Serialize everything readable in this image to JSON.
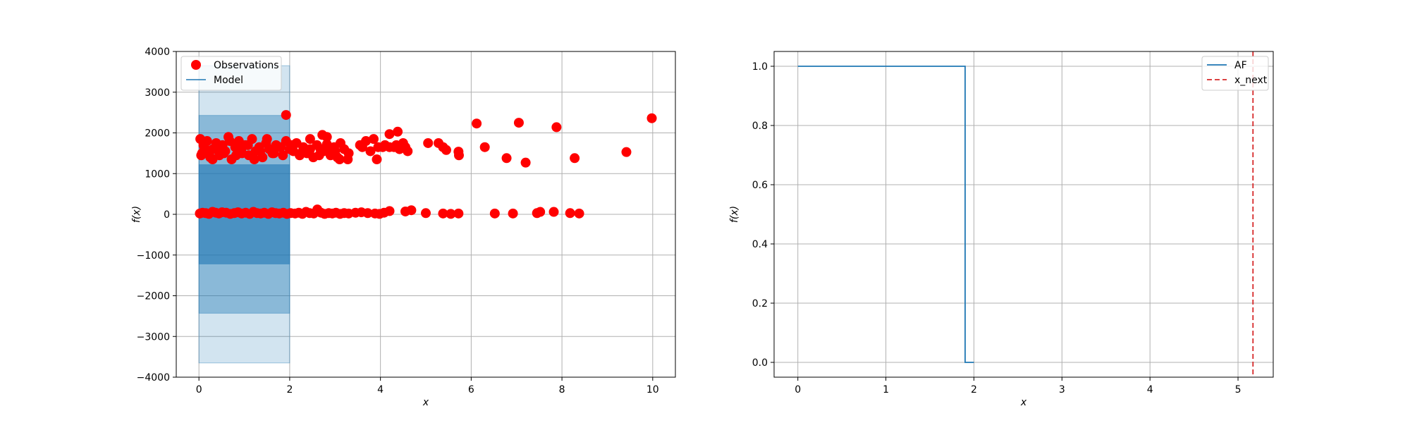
{
  "chart_data": [
    {
      "type": "scatter",
      "xlabel": "x",
      "ylabel": "f(x)",
      "xlim": [
        -0.5,
        10.5
      ],
      "ylim": [
        -4000,
        4000
      ],
      "xticks": [
        0,
        2,
        4,
        6,
        8,
        10
      ],
      "yticks": [
        -4000,
        -3000,
        -2000,
        -1000,
        0,
        1000,
        2000,
        3000,
        4000
      ],
      "grid": true,
      "legend_position": "upper-left",
      "legend": [
        "Observations",
        "Model"
      ],
      "colors": {
        "observations": "#ff0000",
        "model": "#1f77b4",
        "band": "#1f77b4"
      },
      "model": {
        "x_start": 0,
        "x_end": 2,
        "mean": 0
      },
      "bands": [
        {
          "level": 3,
          "lower": -3650,
          "upper": 3650
        },
        {
          "level": 2,
          "lower": -2430,
          "upper": 2430
        },
        {
          "level": 1,
          "lower": -1220,
          "upper": 1220
        }
      ],
      "observations": {
        "x": [
          0.03,
          0.07,
          0.12,
          0.18,
          0.25,
          0.31,
          0.38,
          0.45,
          0.52,
          0.58,
          0.65,
          0.72,
          0.8,
          0.88,
          0.95,
          1.02,
          1.1,
          1.17,
          1.25,
          1.33,
          1.4,
          1.48,
          1.55,
          1.62,
          1.7,
          1.78,
          1.85,
          1.92,
          2.0,
          2.08,
          2.15,
          2.22,
          2.3,
          2.38,
          2.45,
          2.52,
          2.6,
          2.68,
          2.75,
          2.82,
          2.9,
          2.98,
          3.05,
          3.12,
          3.2,
          3.28,
          3.6,
          3.78,
          3.92,
          4.05,
          4.2,
          4.35,
          4.5,
          4.6,
          0.05,
          0.1,
          0.2,
          0.3,
          0.42,
          0.55,
          0.68,
          0.82,
          0.95,
          1.08,
          1.22,
          1.35,
          1.5,
          1.65,
          1.8,
          2.05,
          2.25,
          2.45,
          2.65,
          2.85,
          3.0,
          3.1,
          3.3,
          3.55,
          3.68,
          3.85,
          3.95,
          4.1,
          4.3,
          4.42,
          4.55,
          0.02,
          0.08,
          0.15,
          0.22,
          0.3,
          0.37,
          0.44,
          0.51,
          0.6,
          0.69,
          0.78,
          0.86,
          0.94,
          1.03,
          1.12,
          1.2,
          1.28,
          1.36,
          1.44,
          1.53,
          1.61,
          1.69,
          1.77,
          1.86,
          1.94,
          2.02,
          2.12,
          2.2,
          2.28,
          2.36,
          2.44,
          2.53,
          2.61,
          2.69,
          2.77,
          2.86,
          2.94,
          3.02,
          3.11,
          3.2,
          3.3,
          3.45,
          3.58,
          3.72,
          3.88,
          3.98,
          4.08,
          4.2,
          4.55,
          4.68,
          5.0,
          5.38,
          5.55,
          5.72,
          6.52,
          6.92,
          7.45,
          7.52,
          7.82,
          8.18,
          8.38,
          5.05,
          5.28,
          5.38,
          5.45,
          5.72,
          5.73,
          6.12,
          6.3,
          6.78,
          7.05,
          7.2,
          7.88,
          8.28,
          9.42,
          9.98,
          1.92,
          2.72,
          2.82,
          4.2,
          4.38
        ],
        "y": [
          1850,
          1500,
          1650,
          1800,
          1400,
          1600,
          1750,
          1450,
          1700,
          1550,
          1900,
          1350,
          1650,
          1800,
          1500,
          1700,
          1450,
          1850,
          1550,
          1650,
          1400,
          1750,
          1600,
          1500,
          1700,
          1650,
          1450,
          1800,
          1600,
          1550,
          1750,
          1450,
          1650,
          1500,
          1850,
          1400,
          1700,
          1600,
          1550,
          1900,
          1450,
          1650,
          1400,
          1750,
          1600,
          1350,
          1650,
          1550,
          1350,
          1650,
          1650,
          1700,
          1750,
          1550,
          1450,
          1700,
          1550,
          1350,
          1650,
          1500,
          1800,
          1450,
          1650,
          1700,
          1350,
          1550,
          1850,
          1500,
          1650,
          1700,
          1500,
          1600,
          1450,
          1650,
          1550,
          1350,
          1500,
          1700,
          1800,
          1850,
          1650,
          1700,
          1650,
          1600,
          1650,
          20,
          40,
          30,
          10,
          60,
          40,
          20,
          50,
          40,
          10,
          30,
          50,
          20,
          40,
          10,
          60,
          30,
          20,
          40,
          10,
          50,
          30,
          20,
          40,
          10,
          30,
          20,
          40,
          10,
          60,
          30,
          20,
          120,
          40,
          10,
          30,
          20,
          40,
          10,
          30,
          20,
          40,
          50,
          30,
          20,
          10,
          40,
          80,
          70,
          100,
          30,
          20,
          10,
          20,
          20,
          20,
          30,
          60,
          60,
          30,
          20,
          1750,
          1750,
          1650,
          1580,
          1540,
          1450,
          2230,
          1650,
          1380,
          2250,
          1270,
          2140,
          1380,
          1530,
          2360,
          2440,
          1950,
          1720,
          1970,
          2030
        ]
      }
    },
    {
      "type": "line",
      "xlabel": "x",
      "ylabel": "f(x)",
      "xlim": [
        -0.27,
        5.4
      ],
      "ylim": [
        -0.05,
        1.05
      ],
      "xticks": [
        0,
        1,
        2,
        3,
        4,
        5
      ],
      "yticks": [
        0.0,
        0.2,
        0.4,
        0.6,
        0.8,
        1.0
      ],
      "ytick_labels": [
        "0.0",
        "0.2",
        "0.4",
        "0.6",
        "0.8",
        "1.0"
      ],
      "grid": true,
      "legend_position": "upper-right",
      "legend": [
        "AF",
        "x_next"
      ],
      "colors": {
        "af": "#1f77b4",
        "x_next": "#d62728"
      },
      "af": {
        "x": [
          0,
          1.9,
          1.9,
          2.0
        ],
        "y": [
          1.0,
          1.0,
          0.0,
          0.0
        ]
      },
      "x_next": 5.17
    }
  ]
}
